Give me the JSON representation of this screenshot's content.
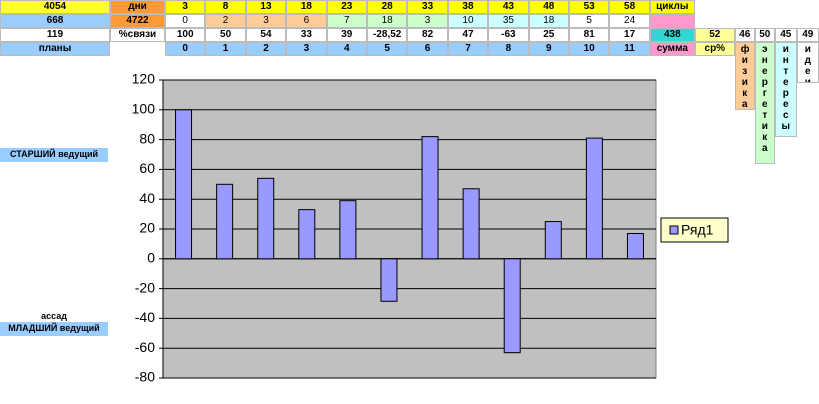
{
  "sheet": {
    "left": [
      4054,
      668,
      119
    ],
    "days_label": "дни",
    "days": [
      3,
      8,
      13,
      18,
      23,
      28,
      33,
      38,
      43,
      48,
      53,
      58
    ],
    "cycles": "циклы",
    "total": 4722,
    "counts": [
      0,
      2,
      3,
      6,
      7,
      18,
      3,
      10,
      35,
      18,
      5,
      24
    ],
    "links_label": "%связи",
    "sum": 438,
    "avg": 52,
    "plans_label": "планы",
    "sum_label": "сумма",
    "avg_label": "ср%",
    "topics": [
      {
        "value": 46,
        "label": "физика"
      },
      {
        "value": 50,
        "label": "энергетика"
      },
      {
        "value": 45,
        "label": "интересы"
      },
      {
        "value": 49,
        "label": "идеи"
      }
    ],
    "senior": "СТАРШИЙ ведущий",
    "assad": "ассад",
    "junior": "МЛАДШИЙ ведущий"
  },
  "chart_data": {
    "type": "bar",
    "categories": [
      0,
      1,
      2,
      3,
      4,
      5,
      6,
      7,
      8,
      9,
      10,
      11
    ],
    "series": [
      {
        "name": "Ряд1",
        "color": "#9999ff",
        "values": [
          100,
          50,
          54,
          33,
          39,
          -28.52,
          82,
          47,
          -63,
          25,
          81,
          17
        ],
        "value_labels": [
          "100",
          "50",
          "54",
          "33",
          "39",
          "-28,52",
          "82",
          "47",
          "-63",
          "25",
          "81",
          "17"
        ]
      }
    ],
    "ylim": [
      -80,
      120
    ],
    "yticks": [
      -80,
      -60,
      -40,
      -20,
      0,
      20,
      40,
      60,
      80,
      100,
      120
    ],
    "grid": true,
    "legend": "right"
  }
}
